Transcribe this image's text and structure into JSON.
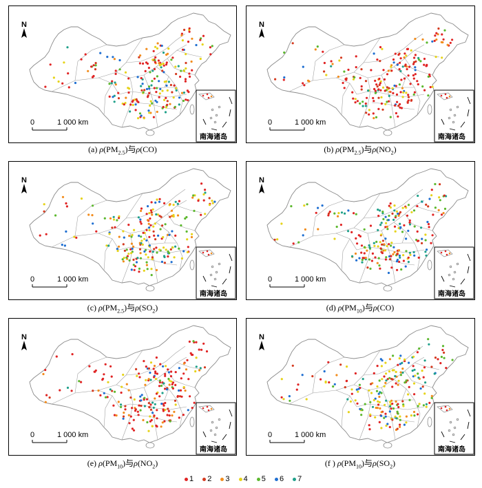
{
  "figure": {
    "north_label": "N",
    "scale_zero": "0",
    "scale_distance": "1 000 km",
    "inset_label": "南海诸岛"
  },
  "panels": [
    {
      "id": "a",
      "caption": "(a)  ρ(PM2.5)与ρ(CO)"
    },
    {
      "id": "b",
      "caption": "(b)  ρ(PM2.5)与ρ(NO2)"
    },
    {
      "id": "c",
      "caption": "(c)  ρ(PM2.5)与ρ(SO2)"
    },
    {
      "id": "d",
      "caption": "(d)  ρ(PM10)与ρ(CO)"
    },
    {
      "id": "e",
      "caption": "(e)  ρ(PM10)与ρ(NO2)"
    },
    {
      "id": "f",
      "caption": "(f )  ρ(PM10)与ρ(SO2)"
    }
  ],
  "legend": {
    "items": [
      {
        "label": "1",
        "color": "#e02424"
      },
      {
        "label": "2",
        "color": "#d43a1f"
      },
      {
        "label": "3",
        "color": "#f28c1c"
      },
      {
        "label": "4",
        "color": "#e6d31a"
      },
      {
        "label": "5",
        "color": "#5cb82e"
      },
      {
        "label": "6",
        "color": "#1f6fd1"
      },
      {
        "label": "7",
        "color": "#1fa08a"
      }
    ]
  }
}
